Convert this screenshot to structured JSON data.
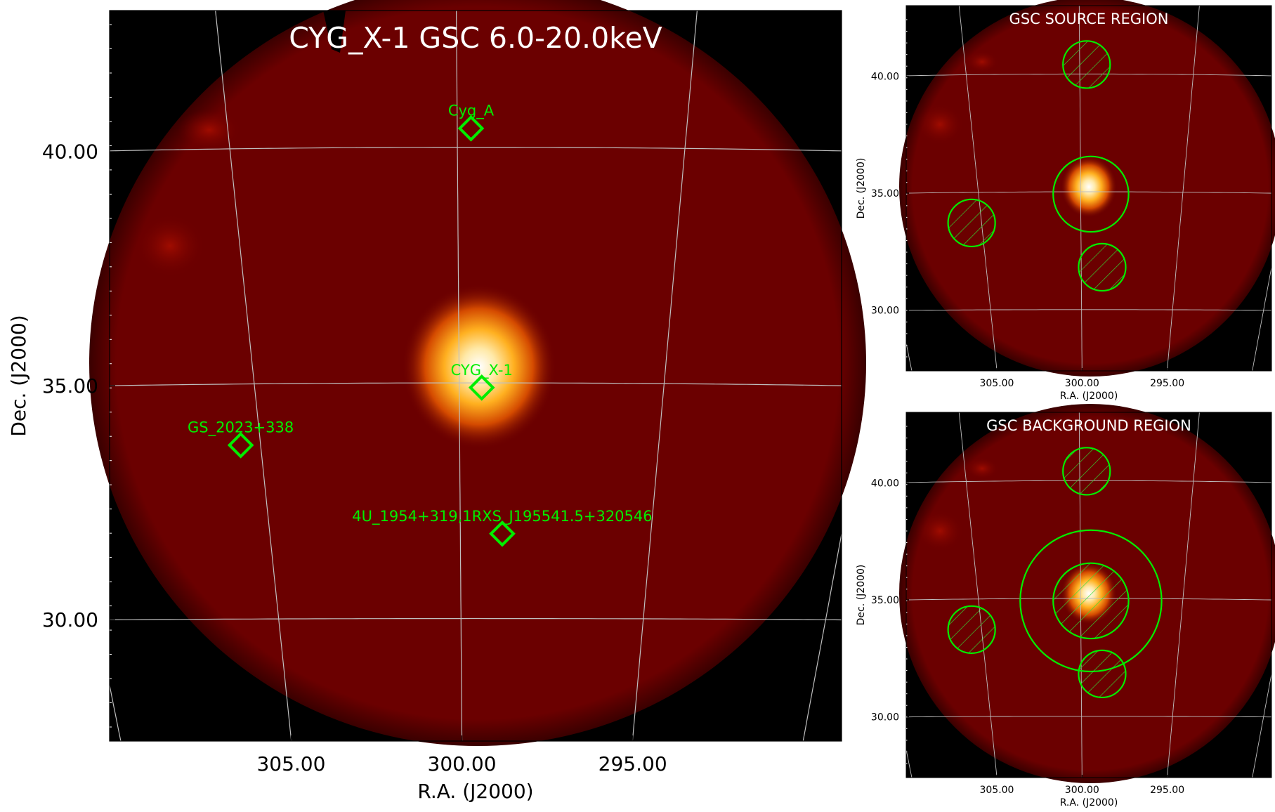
{
  "colors": {
    "background": "#000000",
    "field": "#6b0000",
    "hotspot_core": "#ffffff",
    "hotspot_mid": "#ffb020",
    "marker": "#00ee00",
    "grid": "#bfbfbf",
    "title_text": "#ffffff"
  },
  "chart_data": [
    {
      "type": "heatmap",
      "title": "CYG_X-1 GSC 6.0-20.0keV",
      "xlabel": "R.A. (J2000)",
      "ylabel": "Dec. (J2000)",
      "xlim": [
        308.5,
        290.7
      ],
      "ylim": [
        27.4,
        42.9
      ],
      "x_ticks": [
        305.0,
        300.0,
        295.0
      ],
      "x_tick_labels": [
        "305.00",
        "300.00",
        "295.00"
      ],
      "y_ticks": [
        30.0,
        35.0,
        40.0
      ],
      "y_tick_labels": [
        "30.00",
        "35.00",
        "40.00"
      ],
      "grid": true,
      "sources": [
        {
          "label": "Cyg_A",
          "ra": 299.7,
          "dec": 40.4
        },
        {
          "label": "CYG_X-1",
          "ra": 299.45,
          "dec": 34.9
        },
        {
          "label": "GS_2023+338",
          "ra": 305.5,
          "dec": 33.7
        },
        {
          "label": "4U_1954+319,1RXS_J195541.5+320546",
          "ra": 298.9,
          "dec": 31.8
        }
      ]
    },
    {
      "type": "heatmap",
      "title": "GSC SOURCE REGION",
      "xlabel": "R.A. (J2000)",
      "ylabel": "Dec. (J2000)",
      "xlim": [
        308.5,
        290.7
      ],
      "ylim": [
        27.4,
        42.9
      ],
      "x_ticks": [
        305.0,
        300.0,
        295.0
      ],
      "x_tick_labels": [
        "305.00",
        "300.00",
        "295.00"
      ],
      "y_ticks": [
        30.0,
        35.0,
        40.0
      ],
      "y_tick_labels": [
        "30.00",
        "35.00",
        "40.00"
      ],
      "grid": true,
      "regions": [
        {
          "kind": "source-circle",
          "ra": 299.5,
          "dec": 34.9,
          "radius_deg": 1.6
        },
        {
          "kind": "excluded-circle",
          "ra": 299.7,
          "dec": 40.4,
          "radius_deg": 1.0
        },
        {
          "kind": "excluded-circle",
          "ra": 305.5,
          "dec": 33.7,
          "radius_deg": 1.0
        },
        {
          "kind": "excluded-circle",
          "ra": 298.9,
          "dec": 31.8,
          "radius_deg": 1.0
        }
      ]
    },
    {
      "type": "heatmap",
      "title": "GSC BACKGROUND REGION",
      "xlabel": "R.A. (J2000)",
      "ylabel": "Dec. (J2000)",
      "xlim": [
        308.5,
        290.7
      ],
      "ylim": [
        27.4,
        42.9
      ],
      "x_ticks": [
        305.0,
        300.0,
        295.0
      ],
      "x_tick_labels": [
        "305.00",
        "300.00",
        "295.00"
      ],
      "y_ticks": [
        30.0,
        35.0,
        40.0
      ],
      "y_tick_labels": [
        "30.00",
        "35.00",
        "40.00"
      ],
      "grid": true,
      "regions": [
        {
          "kind": "background-annulus-outer",
          "ra": 299.5,
          "dec": 34.9,
          "radius_deg": 3.0
        },
        {
          "kind": "excluded-circle",
          "ra": 299.5,
          "dec": 34.9,
          "radius_deg": 1.6
        },
        {
          "kind": "excluded-circle",
          "ra": 299.7,
          "dec": 40.4,
          "radius_deg": 1.0
        },
        {
          "kind": "excluded-circle",
          "ra": 305.5,
          "dec": 33.7,
          "radius_deg": 1.0
        },
        {
          "kind": "excluded-circle",
          "ra": 298.9,
          "dec": 31.8,
          "radius_deg": 1.0
        }
      ]
    }
  ]
}
